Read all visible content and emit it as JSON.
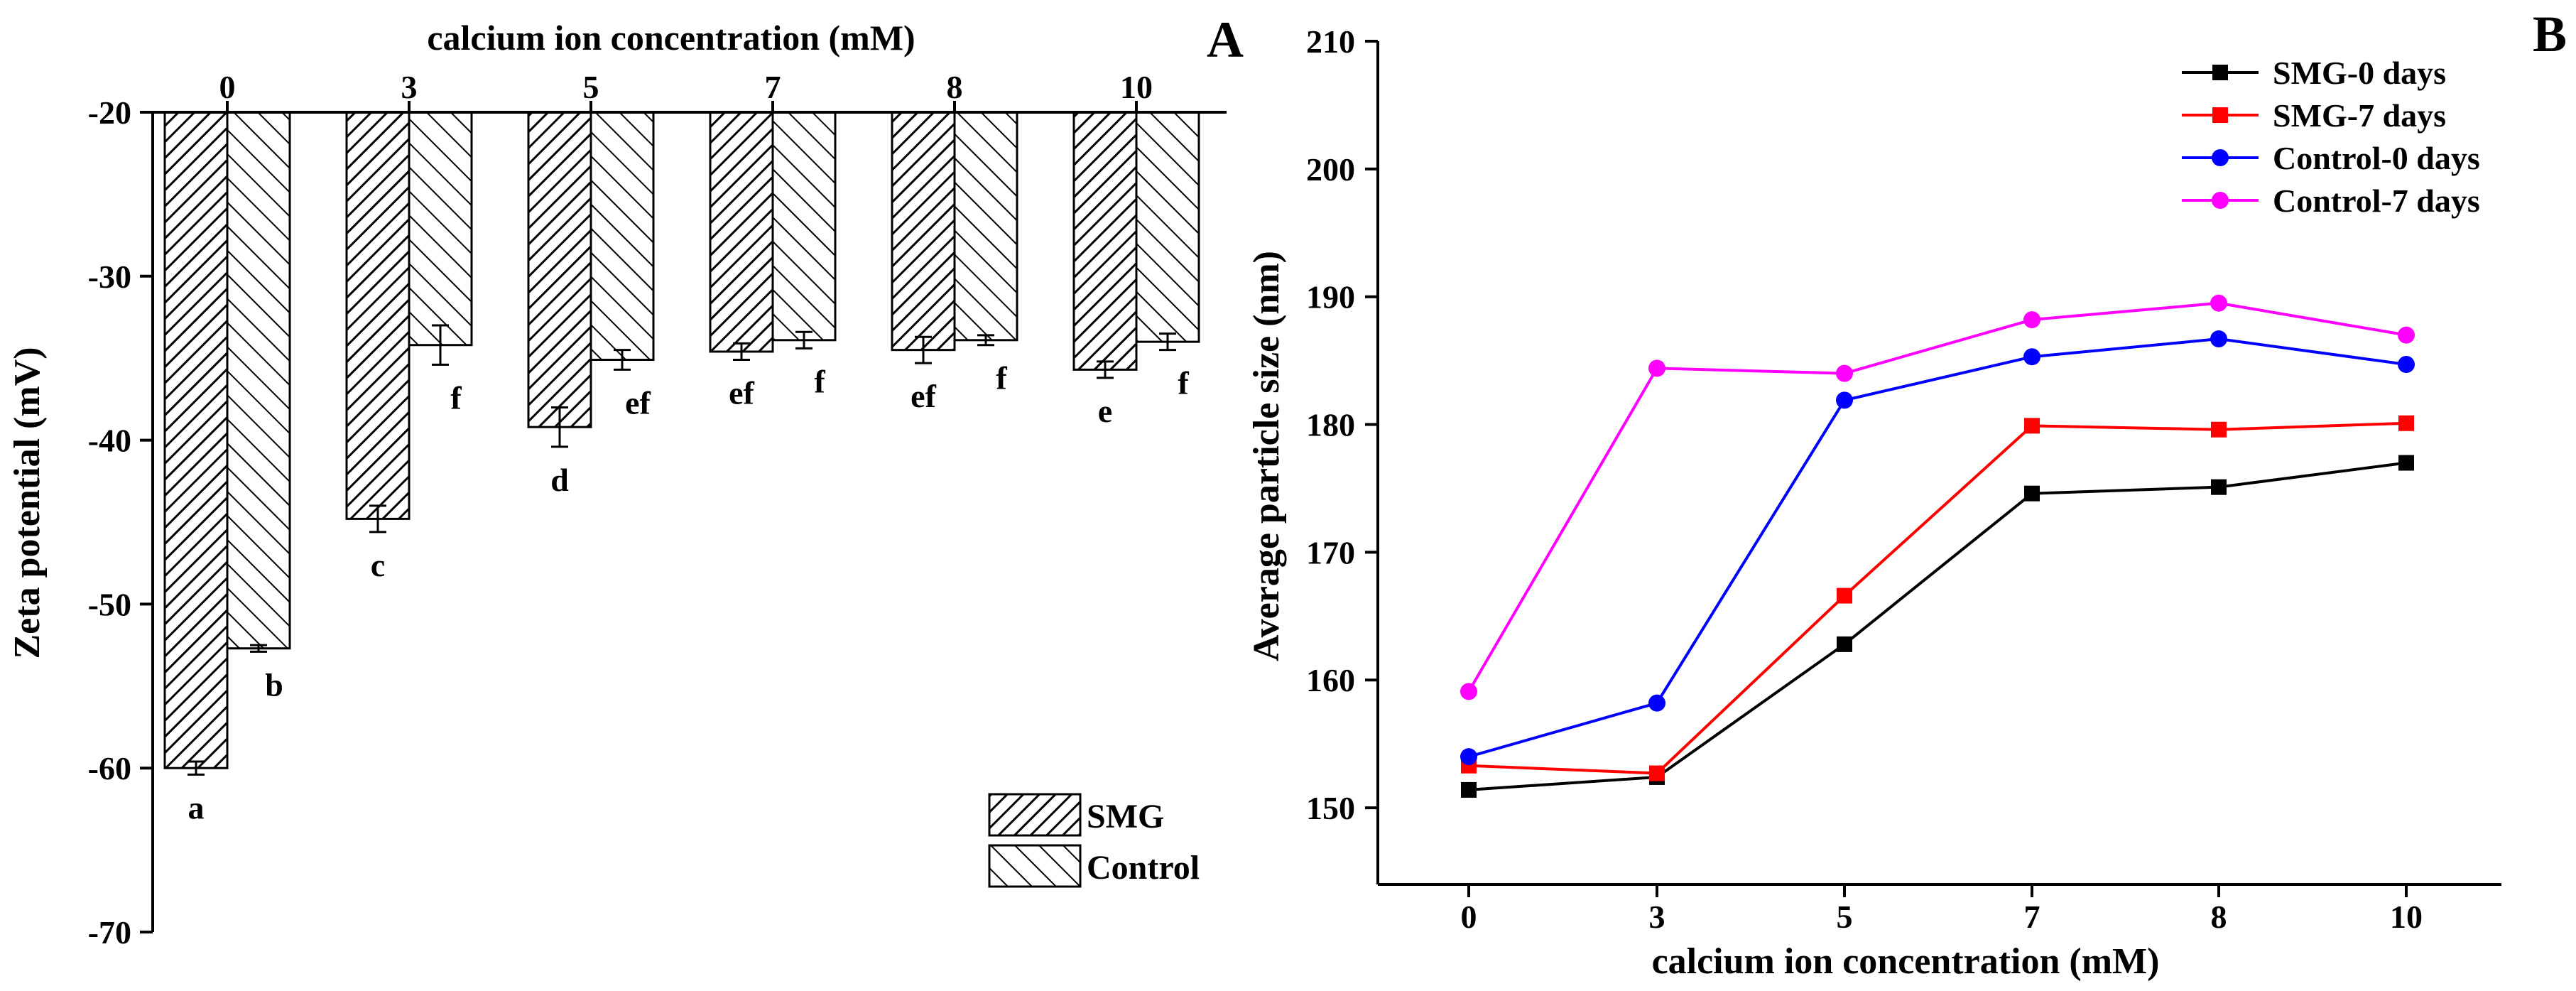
{
  "colors": {
    "bar_stroke": "#000000",
    "SMG-0 days": "#000000",
    "SMG-7 days": "#ff0000",
    "Control-0 days": "#0000ff",
    "Control-7 days": "#ff00ff"
  },
  "chart_data": [
    {
      "panel": "A",
      "type": "bar",
      "title": "",
      "xlabel": "calcium ion concentration (mM)",
      "ylabel": "Zeta potential (mV)",
      "categories": [
        "0",
        "3",
        "5",
        "7",
        "8",
        "10"
      ],
      "ylim": [
        -70,
        -20
      ],
      "yticks": [
        -20,
        -30,
        -40,
        -50,
        -60,
        -70
      ],
      "series": [
        {
          "name": "SMG",
          "pattern": "dense-forward-hatch",
          "values": [
            -60.0,
            -44.8,
            -39.2,
            -34.6,
            -34.5,
            -35.7
          ],
          "errors": [
            0.4,
            0.8,
            1.2,
            0.5,
            0.8,
            0.5
          ],
          "letters": [
            "a",
            "c",
            "d",
            "ef",
            "ef",
            "e"
          ]
        },
        {
          "name": "Control",
          "pattern": "sparse-back-hatch",
          "values": [
            -52.7,
            -34.2,
            -35.1,
            -33.9,
            -33.9,
            -34.0
          ],
          "errors": [
            0.2,
            1.2,
            0.6,
            0.5,
            0.3,
            0.5
          ],
          "letters": [
            "b",
            "f",
            "ef",
            "f",
            "f",
            "f"
          ]
        }
      ]
    },
    {
      "panel": "B",
      "type": "line",
      "title": "",
      "xlabel": "calcium ion concentration (mM)",
      "ylabel": "Average particle size (nm)",
      "x": [
        0,
        3,
        5,
        7,
        8,
        10
      ],
      "ylim": [
        144,
        210
      ],
      "yticks": [
        150,
        160,
        170,
        180,
        190,
        200,
        210
      ],
      "legend_position": "top-right",
      "series": [
        {
          "name": "SMG-0 days",
          "marker": "square",
          "values": [
            151.4,
            152.4,
            162.8,
            174.6,
            175.1,
            177.0
          ]
        },
        {
          "name": "SMG-7 days",
          "marker": "square",
          "values": [
            153.3,
            152.7,
            166.6,
            179.9,
            179.6,
            180.1
          ]
        },
        {
          "name": "Control-0 days",
          "marker": "circle",
          "values": [
            154.0,
            158.2,
            181.9,
            185.3,
            186.7,
            184.7
          ]
        },
        {
          "name": "Control-7 days",
          "marker": "circle",
          "values": [
            159.1,
            184.4,
            184.0,
            188.2,
            189.5,
            187.0
          ]
        }
      ]
    }
  ]
}
